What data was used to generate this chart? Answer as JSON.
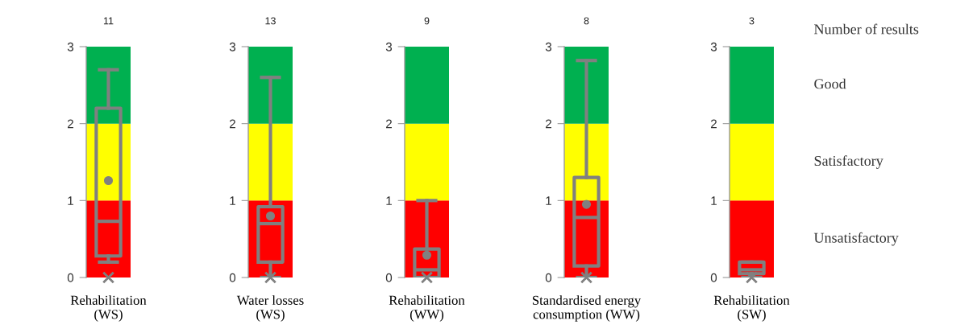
{
  "chart_data": [
    {
      "type": "box",
      "title": "11",
      "categories": [
        "Rehabilitation\n(WS)"
      ],
      "ylim": [
        0,
        3
      ],
      "yticks": [
        0,
        1,
        2,
        3
      ],
      "color": "#808080",
      "boxes": [
        {
          "low": 0.2,
          "q1": 0.28,
          "median": 0.73,
          "q3": 2.2,
          "high": 2.7,
          "mean": 1.26,
          "outliers": [
            0
          ]
        }
      ],
      "bands": [
        {
          "axis": "y",
          "from": 0,
          "to": 1,
          "color": "#ff0000"
        },
        {
          "axis": "y",
          "from": 1,
          "to": 2,
          "color": "#ffff00"
        },
        {
          "axis": "y",
          "from": 2,
          "to": 3,
          "color": "#00b050"
        }
      ]
    },
    {
      "type": "box",
      "title": "13",
      "categories": [
        "Water losses\n(WS)"
      ],
      "ylim": [
        0,
        3
      ],
      "yticks": [
        0,
        1,
        2,
        3
      ],
      "color": "#808080",
      "boxes": [
        {
          "low": 0,
          "q1": 0.2,
          "median": 0.7,
          "q3": 0.92,
          "high": 2.6,
          "mean": 0.8,
          "outliers": [
            0
          ]
        }
      ],
      "bands": [
        {
          "axis": "y",
          "from": 0,
          "to": 1,
          "color": "#ff0000"
        },
        {
          "axis": "y",
          "from": 1,
          "to": 2,
          "color": "#ffff00"
        },
        {
          "axis": "y",
          "from": 2,
          "to": 3,
          "color": "#00b050"
        }
      ]
    },
    {
      "type": "box",
      "title": "9",
      "categories": [
        "Rehabilitation\n(WW)"
      ],
      "ylim": [
        0,
        3
      ],
      "yticks": [
        0,
        1,
        2,
        3
      ],
      "color": "#808080",
      "boxes": [
        {
          "low": 0,
          "q1": 0,
          "median": 0.1,
          "q3": 0.37,
          "high": 1.0,
          "mean": 0.29,
          "outliers": [
            0
          ]
        }
      ],
      "bands": [
        {
          "axis": "y",
          "from": 0,
          "to": 1,
          "color": "#ff0000"
        },
        {
          "axis": "y",
          "from": 1,
          "to": 2,
          "color": "#ffff00"
        },
        {
          "axis": "y",
          "from": 2,
          "to": 3,
          "color": "#00b050"
        }
      ]
    },
    {
      "type": "box",
      "title": "8",
      "categories": [
        "Standardised energy\nconsumption (WW)"
      ],
      "ylim": [
        0,
        3
      ],
      "yticks": [
        0,
        1,
        2,
        3
      ],
      "color": "#808080",
      "boxes": [
        {
          "low": 0,
          "q1": 0.15,
          "median": 0.78,
          "q3": 1.3,
          "high": 2.82,
          "mean": 0.95,
          "outliers": [
            0
          ]
        }
      ],
      "bands": [
        {
          "axis": "y",
          "from": 0,
          "to": 1,
          "color": "#ff0000"
        },
        {
          "axis": "y",
          "from": 1,
          "to": 2,
          "color": "#ffff00"
        },
        {
          "axis": "y",
          "from": 2,
          "to": 3,
          "color": "#00b050"
        }
      ]
    },
    {
      "type": "box",
      "title": "3",
      "categories": [
        "Rehabilitation\n(SW)"
      ],
      "ylim": [
        0,
        3
      ],
      "yticks": [
        0,
        1,
        2,
        3
      ],
      "color": "#808080",
      "boxes": [
        {
          "low": 0,
          "q1": 0.05,
          "median": 0.1,
          "q3": 0.2,
          "high": 0.2,
          "outliers": [
            0
          ]
        }
      ],
      "bands": [
        {
          "axis": "y",
          "from": 0,
          "to": 1,
          "color": "#ff0000",
          "label": "Unsatisfactory"
        },
        {
          "axis": "y",
          "from": 1,
          "to": 2,
          "color": "#ffff00",
          "label": "Satisfactory"
        },
        {
          "axis": "y",
          "from": 2,
          "to": 3,
          "color": "#00b050",
          "label": "Good"
        }
      ],
      "annotations": [
        "Number of results"
      ]
    }
  ]
}
